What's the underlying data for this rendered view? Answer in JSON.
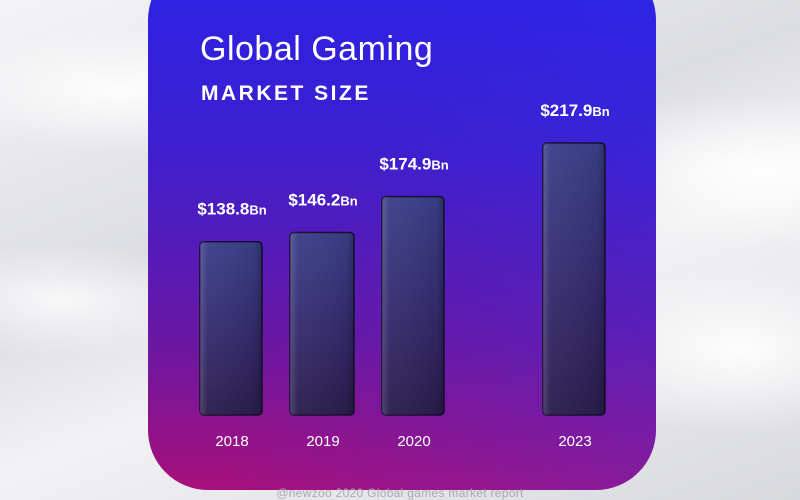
{
  "chart_data": {
    "type": "bar",
    "title": "Global Gaming",
    "subtitle": "MARKET SIZE",
    "categories": [
      "2018",
      "2019",
      "2020",
      "2023"
    ],
    "values": [
      138.8,
      146.2,
      174.9,
      217.9
    ],
    "value_labels": [
      "$138.8",
      "$146.2",
      "$174.9",
      "$217.9"
    ],
    "unit_label": "Bn",
    "xlabel": "",
    "ylabel": "",
    "grid": false,
    "legend": "none"
  },
  "footer": "@newzoo 2020 Global games market report",
  "colors": {
    "card_top": "#2a22e6",
    "card_bottom": "#a8107a",
    "bar_top": "#3a3e86",
    "bar_bottom": "#2a1f4e",
    "text": "#ffffff"
  }
}
